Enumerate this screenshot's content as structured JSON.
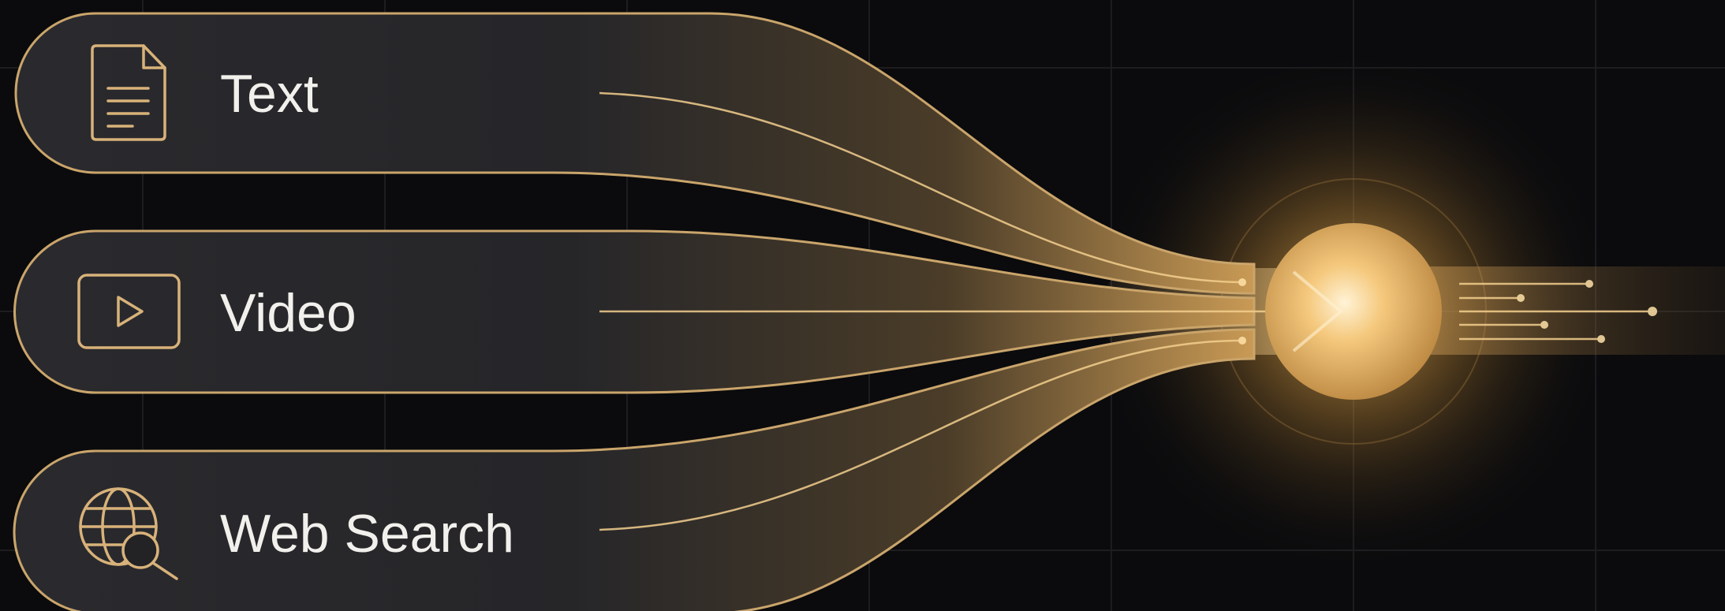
{
  "inputs": [
    {
      "label": "Text"
    },
    {
      "label": "Video"
    },
    {
      "label": "Web Search"
    }
  ]
}
